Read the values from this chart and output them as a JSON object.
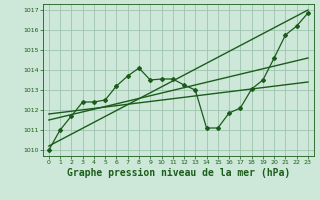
{
  "bg_color": "#cde8d8",
  "grid_color": "#9ec4ae",
  "line_color": "#1a5c1a",
  "xlabel": "Graphe pression niveau de la mer (hPa)",
  "xlabel_fontsize": 7,
  "xlim": [
    -0.5,
    23.5
  ],
  "ylim": [
    1009.7,
    1017.3
  ],
  "yticks": [
    1010,
    1011,
    1012,
    1013,
    1014,
    1015,
    1016,
    1017
  ],
  "xticks": [
    0,
    1,
    2,
    3,
    4,
    5,
    6,
    7,
    8,
    9,
    10,
    11,
    12,
    13,
    14,
    15,
    16,
    17,
    18,
    19,
    20,
    21,
    22,
    23
  ],
  "line1_x": [
    0,
    1,
    2,
    3,
    4,
    5,
    6,
    7,
    8,
    9,
    10,
    11,
    12,
    13,
    14,
    15,
    16,
    17,
    18,
    19,
    20,
    21,
    22,
    23
  ],
  "line1_y": [
    1010.0,
    1011.0,
    1011.7,
    1012.4,
    1012.4,
    1012.5,
    1013.2,
    1013.7,
    1014.1,
    1013.5,
    1013.55,
    1013.55,
    1013.25,
    1013.0,
    1011.1,
    1011.1,
    1011.85,
    1012.1,
    1013.05,
    1013.5,
    1014.6,
    1015.75,
    1016.2,
    1016.85
  ],
  "line2_x": [
    0,
    23
  ],
  "line2_y": [
    1010.2,
    1017.0
  ],
  "line3_x": [
    0,
    23
  ],
  "line3_y": [
    1011.5,
    1014.6
  ],
  "line4_x": [
    0,
    23
  ],
  "line4_y": [
    1011.8,
    1013.4
  ]
}
